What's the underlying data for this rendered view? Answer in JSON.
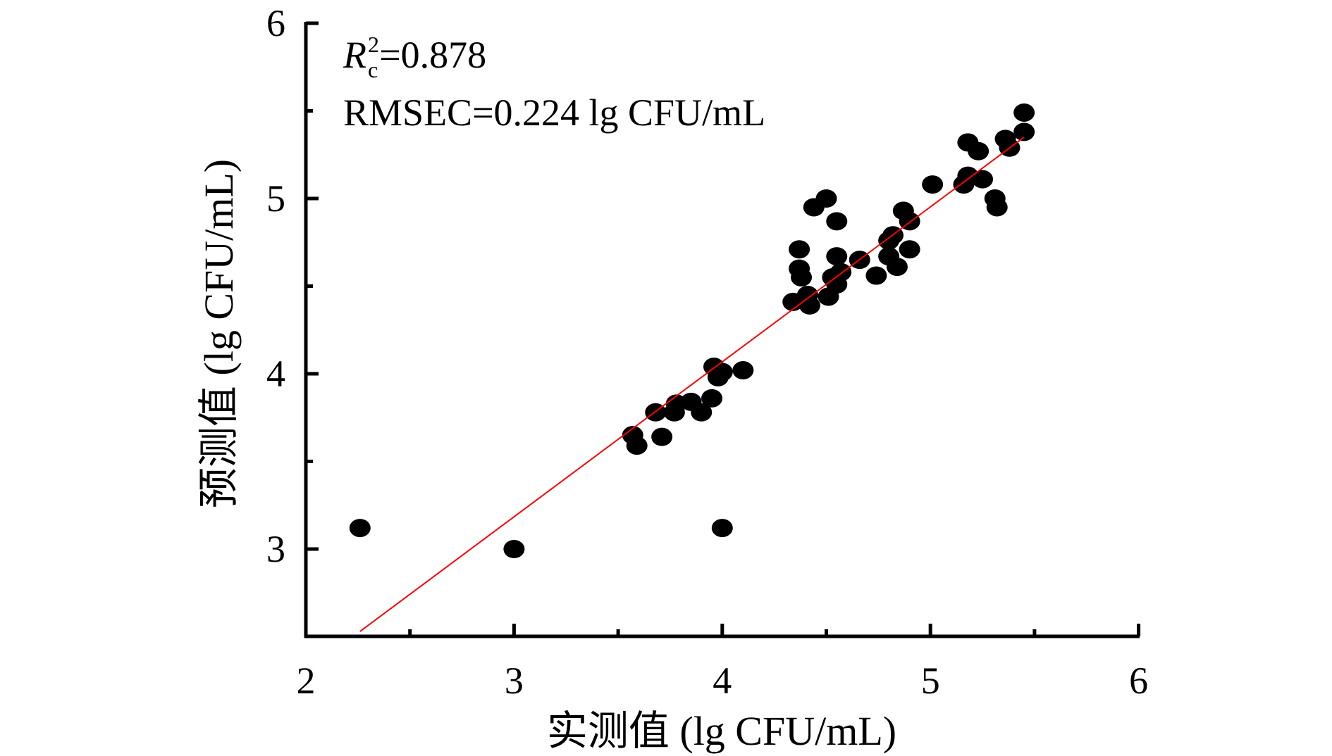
{
  "chart_data": {
    "type": "scatter",
    "title": "",
    "xlabel": "实测值 (lg CFU/mL)",
    "ylabel": "预测值 (lg CFU/mL)",
    "xlim": [
      2,
      6
    ],
    "ylim": [
      2.5,
      6
    ],
    "xticks": [
      2,
      3,
      4,
      5,
      6
    ],
    "yticks": [
      3,
      4,
      5,
      6
    ],
    "grid": false,
    "annotations": {
      "r2_symbol": "R",
      "r2_sub": "c",
      "r2_sup": "2",
      "r2_value": "=0.878",
      "rmsec": "RMSEC=0.224 lg CFU/mL"
    },
    "point_color": "#000000",
    "fit_line_color": "#ff0000",
    "fit_line": {
      "x": [
        2.26,
        5.45
      ],
      "y": [
        2.53,
        5.35
      ]
    },
    "points": [
      [
        2.26,
        3.12
      ],
      [
        3.0,
        3.0
      ],
      [
        4.0,
        3.12
      ],
      [
        3.57,
        3.65
      ],
      [
        3.59,
        3.59
      ],
      [
        3.71,
        3.64
      ],
      [
        3.68,
        3.78
      ],
      [
        3.77,
        3.78
      ],
      [
        3.78,
        3.83
      ],
      [
        3.85,
        3.84
      ],
      [
        3.9,
        3.78
      ],
      [
        3.95,
        3.86
      ],
      [
        3.96,
        4.04
      ],
      [
        3.98,
        3.98
      ],
      [
        4.0,
        4.01
      ],
      [
        4.1,
        4.02
      ],
      [
        4.34,
        4.41
      ],
      [
        4.37,
        4.71
      ],
      [
        4.37,
        4.6
      ],
      [
        4.38,
        4.55
      ],
      [
        4.41,
        4.45
      ],
      [
        4.42,
        4.39
      ],
      [
        4.44,
        4.95
      ],
      [
        4.5,
        5.0
      ],
      [
        4.51,
        4.44
      ],
      [
        4.53,
        4.55
      ],
      [
        4.55,
        4.67
      ],
      [
        4.55,
        4.87
      ],
      [
        4.55,
        4.51
      ],
      [
        4.57,
        4.58
      ],
      [
        4.66,
        4.65
      ],
      [
        4.74,
        4.56
      ],
      [
        4.8,
        4.67
      ],
      [
        4.8,
        4.76
      ],
      [
        4.82,
        4.79
      ],
      [
        4.84,
        4.61
      ],
      [
        4.87,
        4.93
      ],
      [
        4.9,
        4.87
      ],
      [
        4.9,
        4.71
      ],
      [
        5.01,
        5.08
      ],
      [
        5.16,
        5.08
      ],
      [
        5.18,
        5.13
      ],
      [
        5.18,
        5.32
      ],
      [
        5.23,
        5.27
      ],
      [
        5.25,
        5.11
      ],
      [
        5.31,
        5.0
      ],
      [
        5.32,
        4.95
      ],
      [
        5.36,
        5.34
      ],
      [
        5.38,
        5.29
      ],
      [
        5.45,
        5.38
      ],
      [
        5.45,
        5.49
      ]
    ]
  }
}
